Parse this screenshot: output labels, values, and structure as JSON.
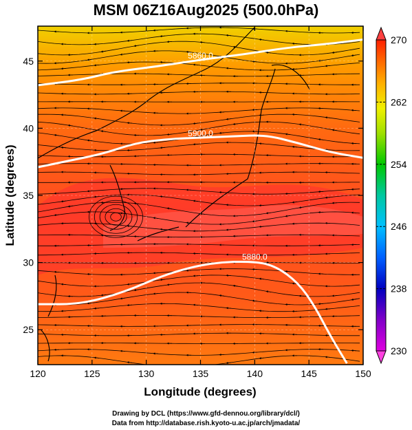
{
  "title": "MSM 06Z16Aug2025 (500.0hPa)",
  "chart_data": {
    "type": "map",
    "xlabel": "Longitude (degrees)",
    "ylabel": "Latitude  (degrees)",
    "xlim": [
      120,
      150
    ],
    "ylim": [
      22.4,
      47.6
    ],
    "x_ticks": [
      "120",
      "125",
      "130",
      "135",
      "140",
      "145",
      "150"
    ],
    "y_ticks": [
      "25",
      "30",
      "35",
      "40",
      "45"
    ],
    "colorbar": {
      "range": [
        230,
        270
      ],
      "tick_labels": [
        "230",
        "238",
        "246",
        "254",
        "262",
        "270"
      ],
      "colors": [
        "#e000e0",
        "#7000c8",
        "#0000c8",
        "#0060ff",
        "#00c8ff",
        "#00c8a0",
        "#00c800",
        "#80dc00",
        "#e0f000",
        "#ffd000",
        "#ff9000",
        "#ff5000",
        "#ff2000"
      ]
    },
    "contours": [
      {
        "label": "5880.0",
        "points": [
          [
            120,
            26.9
          ],
          [
            124,
            26.9
          ],
          [
            128,
            27.8
          ],
          [
            132,
            29.2
          ],
          [
            136,
            30.0
          ],
          [
            140,
            30.1
          ],
          [
            142,
            29.7
          ],
          [
            144,
            28.5
          ],
          [
            145.5,
            26.8
          ],
          [
            147,
            24.5
          ],
          [
            148.5,
            22.5
          ]
        ]
      },
      {
        "label": "5900.0",
        "points": [
          [
            120,
            37.1
          ],
          [
            123,
            37.6
          ],
          [
            126,
            38.1
          ],
          [
            129,
            38.9
          ],
          [
            132,
            39.2
          ],
          [
            135,
            39.3
          ],
          [
            138,
            39.4
          ],
          [
            141,
            39.5
          ],
          [
            144,
            38.9
          ],
          [
            147,
            38.2
          ],
          [
            150,
            37.8
          ]
        ]
      },
      {
        "label": "5860.0",
        "points": [
          [
            120,
            43.2
          ],
          [
            124,
            43.6
          ],
          [
            127,
            44.2
          ],
          [
            131,
            44.6
          ],
          [
            135,
            45.1
          ],
          [
            139,
            45.5
          ],
          [
            143,
            46.0
          ],
          [
            147,
            46.3
          ],
          [
            150,
            46.6
          ]
        ]
      }
    ]
  },
  "credits": {
    "drawing": "Drawing by DCL (https://www.gfd-dennou.org/library/dcl/)",
    "data": "Data from http://database.rish.kyoto-u.ac.jp/arch/jmadata/"
  }
}
